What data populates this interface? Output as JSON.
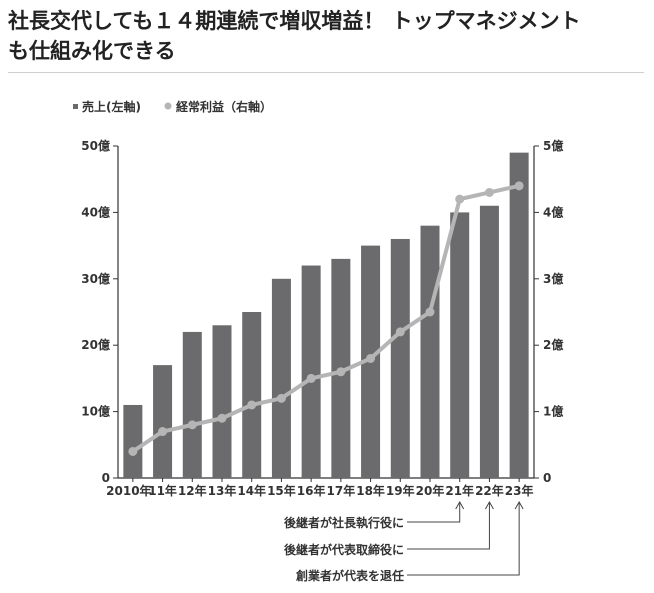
{
  "headline": {
    "line1": "社長交代しても１４期連続で増収増益！ トップマネジメント",
    "line2": "も仕組み化できる"
  },
  "colors": {
    "bar": "#6b6b6e",
    "line": "#b5b5b5",
    "axis": "#333333",
    "annotation": "#444444"
  },
  "chart_data": {
    "type": "bar",
    "categories": [
      "2010年",
      "11年",
      "12年",
      "13年",
      "14年",
      "15年",
      "16年",
      "17年",
      "18年",
      "19年",
      "20年",
      "21年",
      "22年",
      "23年"
    ],
    "series": [
      {
        "name": "売上(左軸)",
        "type": "bar",
        "axis": "left",
        "values": [
          11,
          17,
          22,
          23,
          25,
          30,
          32,
          33,
          35,
          36,
          38,
          40,
          41,
          49
        ]
      },
      {
        "name": "経常利益（右軸）",
        "type": "line",
        "axis": "right",
        "values": [
          0.4,
          0.7,
          0.8,
          0.9,
          1.1,
          1.2,
          1.5,
          1.6,
          1.8,
          2.2,
          2.5,
          4.2,
          4.3,
          4.4
        ]
      }
    ],
    "left_axis": {
      "ylim": [
        0,
        50
      ],
      "ticks": [
        "0",
        "10億",
        "20億",
        "30億",
        "40億",
        "50億"
      ]
    },
    "right_axis": {
      "ylim": [
        0,
        5
      ],
      "ticks": [
        "0",
        "1億",
        "2億",
        "3億",
        "4億",
        "5億"
      ]
    },
    "legend_placement": "top-left",
    "grid": false,
    "annotations": [
      {
        "text": "後継者が社長執行役に",
        "category": "21年"
      },
      {
        "text": "後継者が代表取締役に",
        "category": "22年"
      },
      {
        "text": "創業者が代表を退任",
        "category": "23年"
      }
    ]
  }
}
